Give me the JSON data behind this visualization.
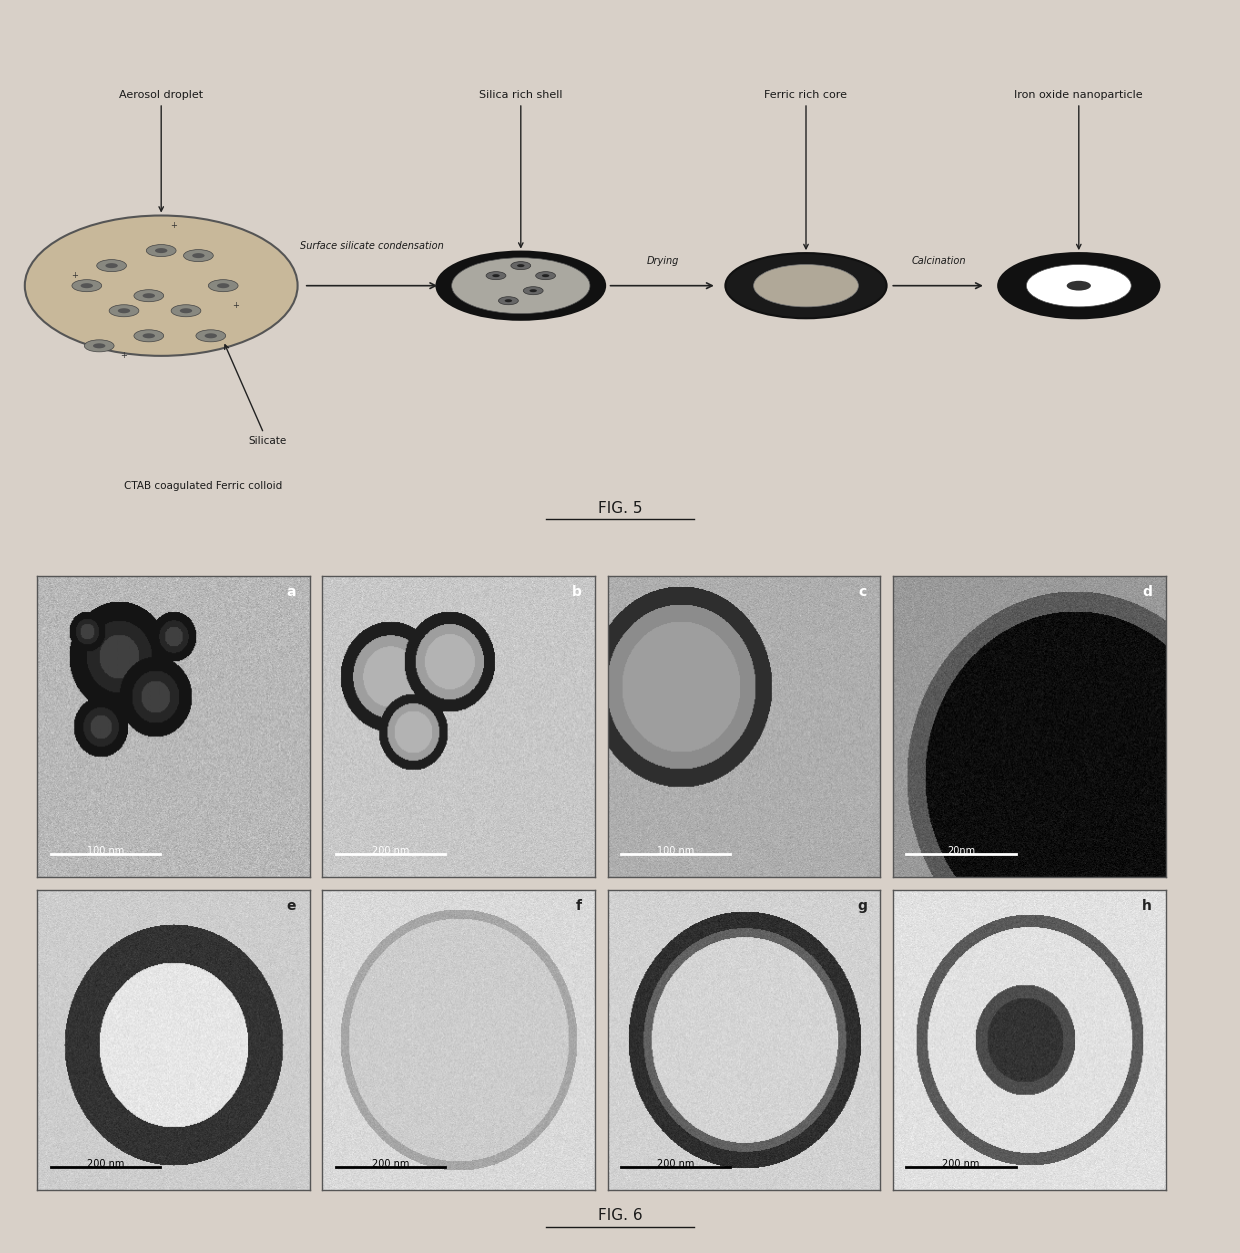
{
  "fig5_title": "FIG. 5",
  "fig6_title": "FIG. 6",
  "background_color": "#d8d0c8",
  "panel_labels": [
    "a",
    "b",
    "c",
    "d",
    "e",
    "f",
    "g",
    "h"
  ],
  "scale_bar_labels": [
    "100 nm",
    "200 nm",
    "100 nm",
    "20nm",
    "200 nm",
    "200 nm",
    "200 nm",
    "200 nm"
  ],
  "text_color": "#1a1a1a",
  "arrow_color": "#333333",
  "panel_border": "#444444"
}
